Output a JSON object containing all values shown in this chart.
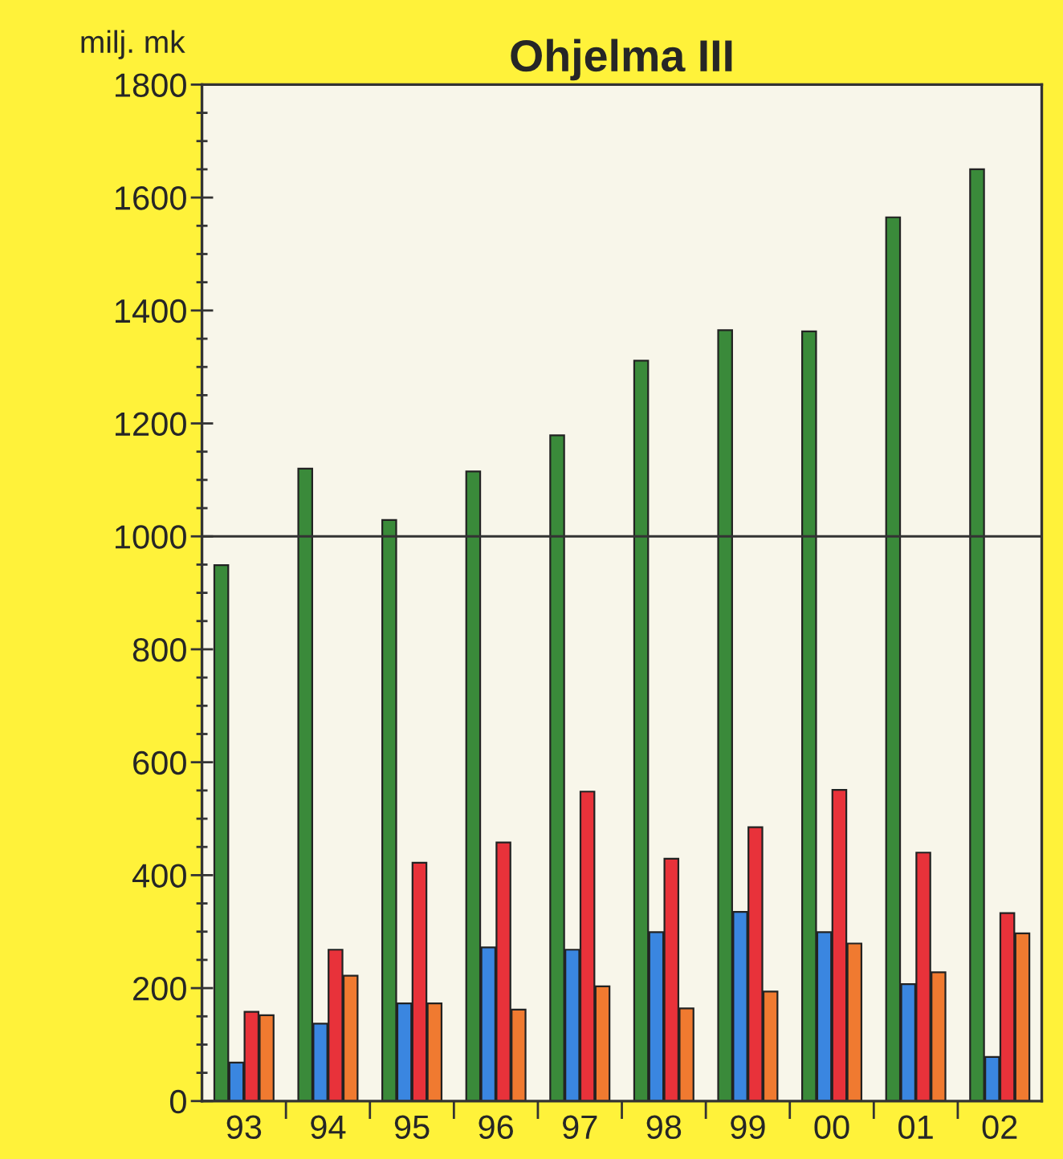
{
  "chart_data": {
    "type": "bar",
    "title": "Ohjelma III",
    "ylabel": "milj. mk",
    "categories": [
      "93",
      "94",
      "95",
      "96",
      "97",
      "98",
      "99",
      "00",
      "01",
      "02"
    ],
    "series": [
      {
        "color": "#3a8a3a",
        "values": [
          949,
          1120,
          1029,
          1115,
          1179,
          1311,
          1365,
          1363,
          1565,
          1650
        ]
      },
      {
        "color": "#3a86e0",
        "values": [
          68,
          137,
          173,
          272,
          268,
          299,
          335,
          299,
          207,
          78
        ]
      },
      {
        "color": "#e8323a",
        "values": [
          158,
          268,
          422,
          458,
          548,
          429,
          485,
          551,
          440,
          333
        ]
      },
      {
        "color": "#f07a30",
        "values": [
          152,
          222,
          173,
          162,
          203,
          164,
          194,
          279,
          228,
          297
        ]
      }
    ],
    "ylim": [
      0,
      1800
    ],
    "yticks": [
      0,
      {
        "value": 50,
        "label": null
      },
      {
        "value": 100,
        "label": null
      },
      {
        "value": 150,
        "label": null
      },
      200,
      {
        "value": 250,
        "label": null
      },
      {
        "value": 300,
        "label": null
      },
      {
        "value": 350,
        "label": null
      },
      400,
      {
        "value": 450,
        "label": null
      },
      {
        "value": 500,
        "label": null
      },
      {
        "value": 550,
        "label": null
      },
      600,
      {
        "value": 650,
        "label": null
      },
      {
        "value": 700,
        "label": null
      },
      {
        "value": 750,
        "label": null
      },
      800,
      {
        "value": 850,
        "label": null
      },
      {
        "value": 900,
        "label": null
      },
      {
        "value": 950,
        "label": null
      },
      1000,
      {
        "value": 1050,
        "label": null
      },
      {
        "value": 1100,
        "label": null
      },
      {
        "value": 1150,
        "label": null
      },
      1200,
      {
        "value": 1250,
        "label": null
      },
      {
        "value": 1300,
        "label": null
      },
      {
        "value": 1350,
        "label": null
      },
      1400,
      {
        "value": 1450,
        "label": null
      },
      {
        "value": 1500,
        "label": null
      },
      {
        "value": 1550,
        "label": null
      },
      1600,
      {
        "value": 1650,
        "label": null
      },
      {
        "value": 1700,
        "label": null
      },
      {
        "value": 1750,
        "label": null
      },
      1800
    ],
    "ref_lines": [
      {
        "axis": "y",
        "value": 1000,
        "color": "#333333"
      }
    ],
    "grid": false,
    "legend": false
  }
}
